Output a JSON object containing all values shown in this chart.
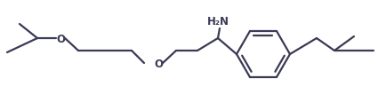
{
  "background": "#ffffff",
  "line_color": "#3a3a55",
  "line_width": 1.6,
  "text_color": "#3a3a55",
  "nh2_label": "H₂N",
  "o_label": "O",
  "font_size": 8.5,
  "fig_w": 4.25,
  "fig_h": 1.16,
  "dpi": 100
}
